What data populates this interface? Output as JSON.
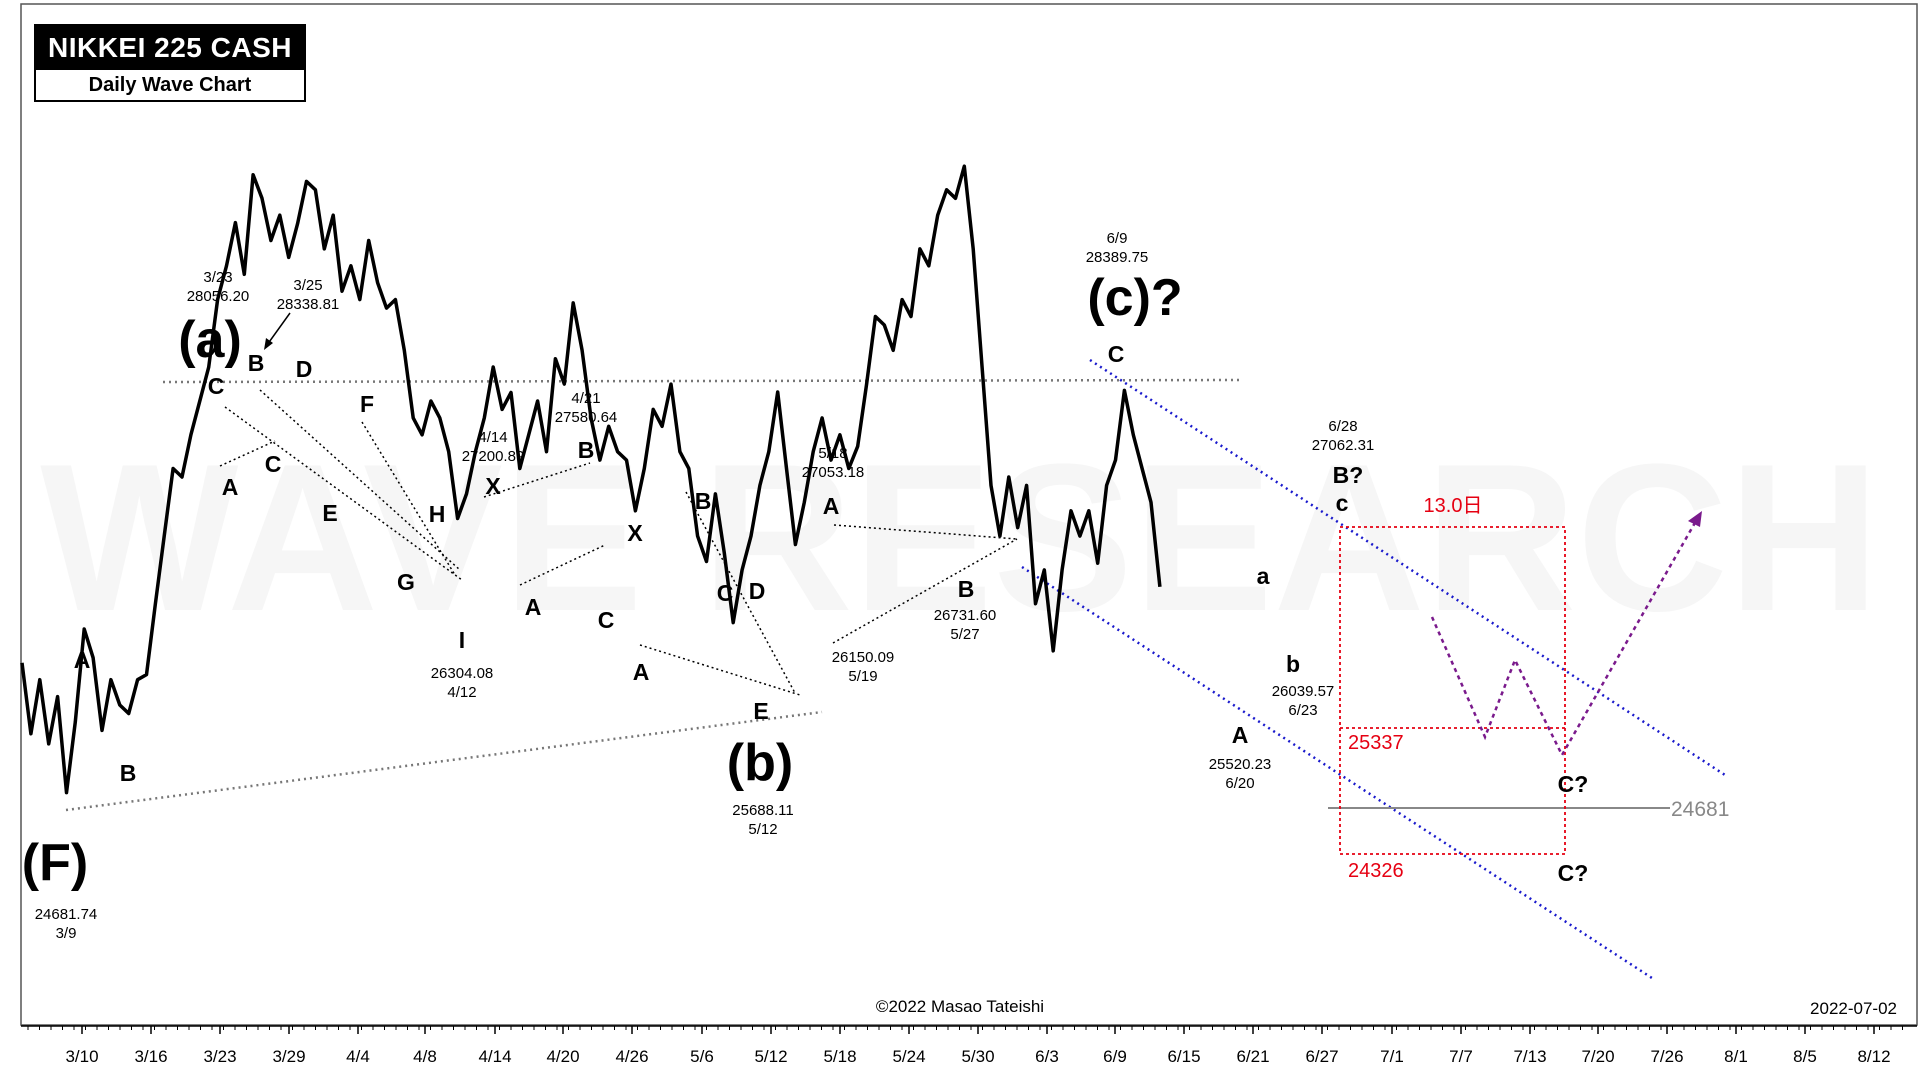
{
  "header": {
    "title": "NIKKEI 225 CASH",
    "subtitle": "Daily Wave Chart"
  },
  "footer": {
    "copyright": "©2022 Masao Tateishi",
    "date": "2022-07-02"
  },
  "watermark": "WAVE RESEARCH",
  "colors": {
    "price_line": "#000000",
    "channel": "#1a1acc",
    "projection": "#7a1a8c",
    "target_box": "#e60012",
    "guide": "#888888"
  },
  "chart_data": {
    "type": "line",
    "title": "NIKKEI 225 CASH",
    "subtitle": "Daily Wave Chart",
    "x_ticks": [
      "3/10",
      "3/16",
      "3/23",
      "3/29",
      "4/4",
      "4/8",
      "4/14",
      "4/20",
      "4/26",
      "5/6",
      "5/12",
      "5/18",
      "5/24",
      "5/30",
      "6/3",
      "6/9",
      "6/15",
      "6/21",
      "6/27",
      "7/1",
      "7/7",
      "7/13",
      "7/20",
      "7/26",
      "8/1",
      "8/5",
      "8/12"
    ],
    "ylim": [
      23300,
      29350
    ],
    "grid": false,
    "series": [
      {
        "values": [
          [
            0,
            25450
          ],
          [
            1,
            25030
          ],
          [
            2,
            25350
          ],
          [
            3,
            24970
          ],
          [
            4,
            25250
          ],
          [
            5,
            24681.74
          ],
          [
            6,
            25100
          ],
          [
            7,
            25650
          ],
          [
            8,
            25480
          ],
          [
            9,
            25050
          ],
          [
            10,
            25350
          ],
          [
            11,
            25200
          ],
          [
            12,
            25150
          ],
          [
            13,
            25350
          ],
          [
            14,
            25380
          ],
          [
            15,
            25800
          ],
          [
            16,
            26200
          ],
          [
            17,
            26600
          ],
          [
            18,
            26550
          ],
          [
            19,
            26800
          ],
          [
            20,
            27000
          ],
          [
            21,
            27200
          ],
          [
            22,
            27600
          ],
          [
            23,
            27800
          ],
          [
            24,
            28056.2
          ],
          [
            25,
            27750
          ],
          [
            26,
            28338.81
          ],
          [
            27,
            28200
          ],
          [
            28,
            27950
          ],
          [
            29,
            28100
          ],
          [
            30,
            27850
          ],
          [
            31,
            28050
          ],
          [
            32,
            28300
          ],
          [
            33,
            28250
          ],
          [
            34,
            27900
          ],
          [
            35,
            28100
          ],
          [
            36,
            27650
          ],
          [
            37,
            27800
          ],
          [
            38,
            27600
          ],
          [
            39,
            27950
          ],
          [
            40,
            27700
          ],
          [
            41,
            27550
          ],
          [
            42,
            27600
          ],
          [
            43,
            27300
          ],
          [
            44,
            26900
          ],
          [
            45,
            26800
          ],
          [
            46,
            27000
          ],
          [
            47,
            26900
          ],
          [
            48,
            26700
          ],
          [
            49,
            26304.08
          ],
          [
            50,
            26450
          ],
          [
            51,
            26700
          ],
          [
            52,
            26900
          ],
          [
            53,
            27200.89
          ],
          [
            54,
            26950
          ],
          [
            55,
            27050
          ],
          [
            56,
            26600
          ],
          [
            57,
            26800
          ],
          [
            58,
            27000
          ],
          [
            59,
            26700
          ],
          [
            60,
            27250
          ],
          [
            61,
            27100
          ],
          [
            62,
            27580.64
          ],
          [
            63,
            27300
          ],
          [
            64,
            26900
          ],
          [
            65,
            26650
          ],
          [
            66,
            26850
          ],
          [
            67,
            26700
          ],
          [
            68,
            26650
          ],
          [
            69,
            26350
          ],
          [
            70,
            26600
          ],
          [
            71,
            26950
          ],
          [
            72,
            26850
          ],
          [
            73,
            27100
          ],
          [
            74,
            26700
          ],
          [
            75,
            26600
          ],
          [
            76,
            26200
          ],
          [
            77,
            26050
          ],
          [
            78,
            26450
          ],
          [
            79,
            26100
          ],
          [
            80,
            25688.11
          ],
          [
            81,
            26000
          ],
          [
            82,
            26200
          ],
          [
            83,
            26500
          ],
          [
            84,
            26700
          ],
          [
            85,
            27053.18
          ],
          [
            86,
            26600
          ],
          [
            87,
            26150.09
          ],
          [
            88,
            26400
          ],
          [
            89,
            26700
          ],
          [
            90,
            26900
          ],
          [
            91,
            26650
          ],
          [
            92,
            26800
          ],
          [
            93,
            26600
          ],
          [
            94,
            26731.6
          ],
          [
            95,
            27100
          ],
          [
            96,
            27500
          ],
          [
            97,
            27450
          ],
          [
            98,
            27300
          ],
          [
            99,
            27600
          ],
          [
            100,
            27500
          ],
          [
            101,
            27900
          ],
          [
            102,
            27800
          ],
          [
            103,
            28100
          ],
          [
            104,
            28250
          ],
          [
            105,
            28200
          ],
          [
            106,
            28389.75
          ],
          [
            107,
            27900
          ],
          [
            108,
            27200
          ],
          [
            109,
            26500
          ],
          [
            110,
            26200
          ],
          [
            111,
            26550
          ],
          [
            112,
            26250
          ],
          [
            113,
            26500
          ],
          [
            114,
            25800
          ],
          [
            115,
            26000
          ],
          [
            116,
            25520.23
          ],
          [
            117,
            26000
          ],
          [
            118,
            26350
          ],
          [
            119,
            26200
          ],
          [
            120,
            26350
          ],
          [
            121,
            26039.57
          ],
          [
            122,
            26500
          ],
          [
            123,
            26650
          ],
          [
            124,
            27062.31
          ],
          [
            125,
            26800
          ],
          [
            126,
            26600
          ],
          [
            127,
            26400
          ],
          [
            128,
            25900
          ]
        ]
      }
    ],
    "wave_labels": [
      {
        "text": "(F)",
        "size": "large"
      },
      {
        "text": "(a)",
        "size": "large"
      },
      {
        "text": "(b)",
        "size": "large"
      },
      {
        "text": "(c)?",
        "size": "large"
      },
      {
        "text": "A"
      },
      {
        "text": "B"
      },
      {
        "text": "C"
      },
      {
        "text": "A"
      },
      {
        "text": "B"
      },
      {
        "text": "C"
      },
      {
        "text": "D"
      },
      {
        "text": "E"
      },
      {
        "text": "F"
      },
      {
        "text": "G"
      },
      {
        "text": "H"
      },
      {
        "text": "I"
      },
      {
        "text": "X"
      },
      {
        "text": "A"
      },
      {
        "text": "B"
      },
      {
        "text": "X"
      },
      {
        "text": "C"
      },
      {
        "text": "A"
      },
      {
        "text": "B"
      },
      {
        "text": "C"
      },
      {
        "text": "D"
      },
      {
        "text": "E"
      },
      {
        "text": "A"
      },
      {
        "text": "B"
      },
      {
        "text": "C"
      },
      {
        "text": "A"
      },
      {
        "text": "B?"
      },
      {
        "text": "C?"
      },
      {
        "text": "C?"
      }
    ],
    "subwave_labels": [
      "a",
      "b",
      "c"
    ],
    "annotations": [
      {
        "date": "3/9",
        "price": "24681.74"
      },
      {
        "date": "3/23",
        "price": "28056.20"
      },
      {
        "date": "3/25",
        "price": "28338.81"
      },
      {
        "date": "4/12",
        "price": "26304.08"
      },
      {
        "date": "4/14",
        "price": "27200.89"
      },
      {
        "date": "4/21",
        "price": "27580.64"
      },
      {
        "date": "5/12",
        "price": "25688.11"
      },
      {
        "date": "5/18",
        "price": "27053.18"
      },
      {
        "date": "5/19",
        "price": "26150.09"
      },
      {
        "date": "5/27",
        "price": "26731.60"
      },
      {
        "date": "6/9",
        "price": "28389.75"
      },
      {
        "date": "6/20",
        "price": "25520.23"
      },
      {
        "date": "6/23",
        "price": "26039.57"
      },
      {
        "date": "6/28",
        "price": "27062.31"
      }
    ],
    "time_target": "13.0日",
    "price_targets": [
      "25337",
      "24326"
    ],
    "reference_level": "24681"
  }
}
